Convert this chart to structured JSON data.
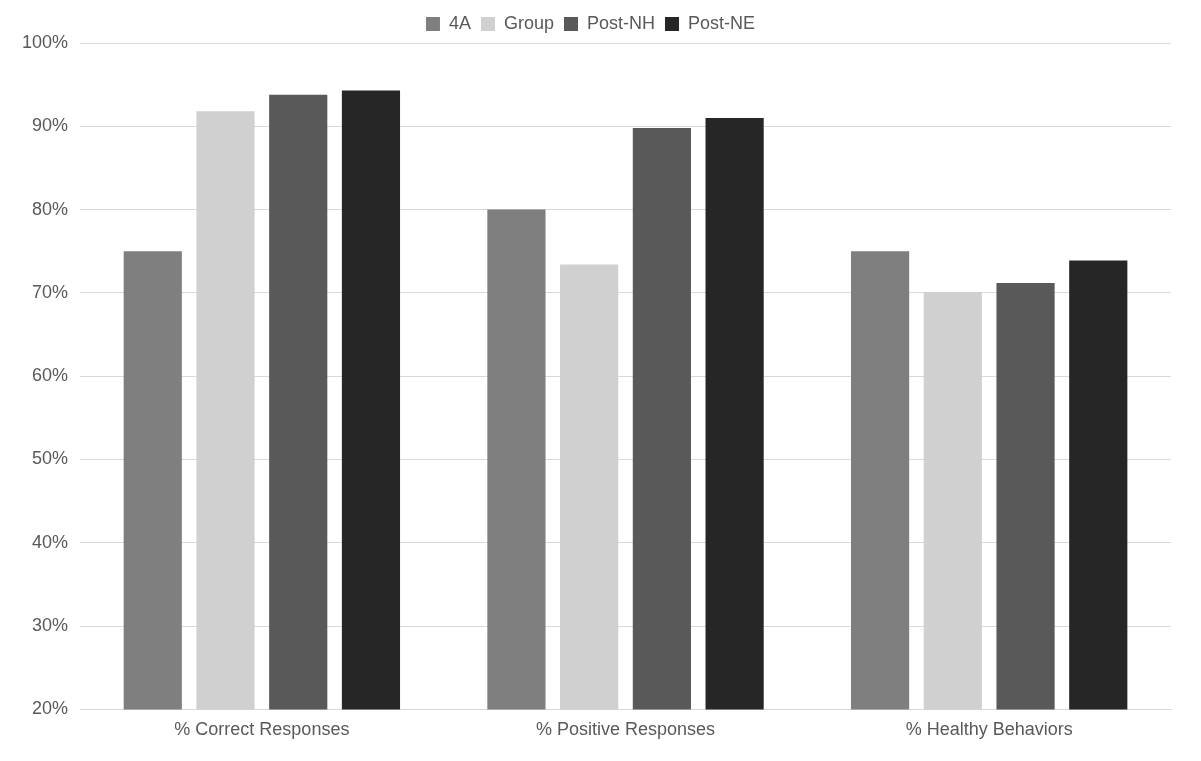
{
  "chart_data": {
    "type": "bar",
    "categories": [
      "% Correct Responses",
      "% Positive Responses",
      "% Healthy Behaviors"
    ],
    "series": [
      {
        "name": "4A",
        "color": "#7f7f7f",
        "values": [
          75,
          80,
          75
        ]
      },
      {
        "name": "Group",
        "color": "#d0d0d0",
        "values": [
          91.8,
          73.4,
          70.1
        ]
      },
      {
        "name": "Post-NH",
        "color": "#595959",
        "values": [
          93.8,
          89.8,
          71.2
        ]
      },
      {
        "name": "Post-NE",
        "color": "#262626",
        "values": [
          94.3,
          91,
          73.9
        ]
      }
    ],
    "ylim": [
      20,
      100
    ],
    "yticks": [
      {
        "value": 20,
        "label": "20%"
      },
      {
        "value": 30,
        "label": "30%"
      },
      {
        "value": 40,
        "label": "40%"
      },
      {
        "value": 50,
        "label": "50%"
      },
      {
        "value": 60,
        "label": "60%"
      },
      {
        "value": 70,
        "label": "70%"
      },
      {
        "value": 80,
        "label": "80%"
      },
      {
        "value": 90,
        "label": "90%"
      },
      {
        "value": 100,
        "label": "100%"
      }
    ],
    "grid": "y",
    "legend": "top"
  }
}
